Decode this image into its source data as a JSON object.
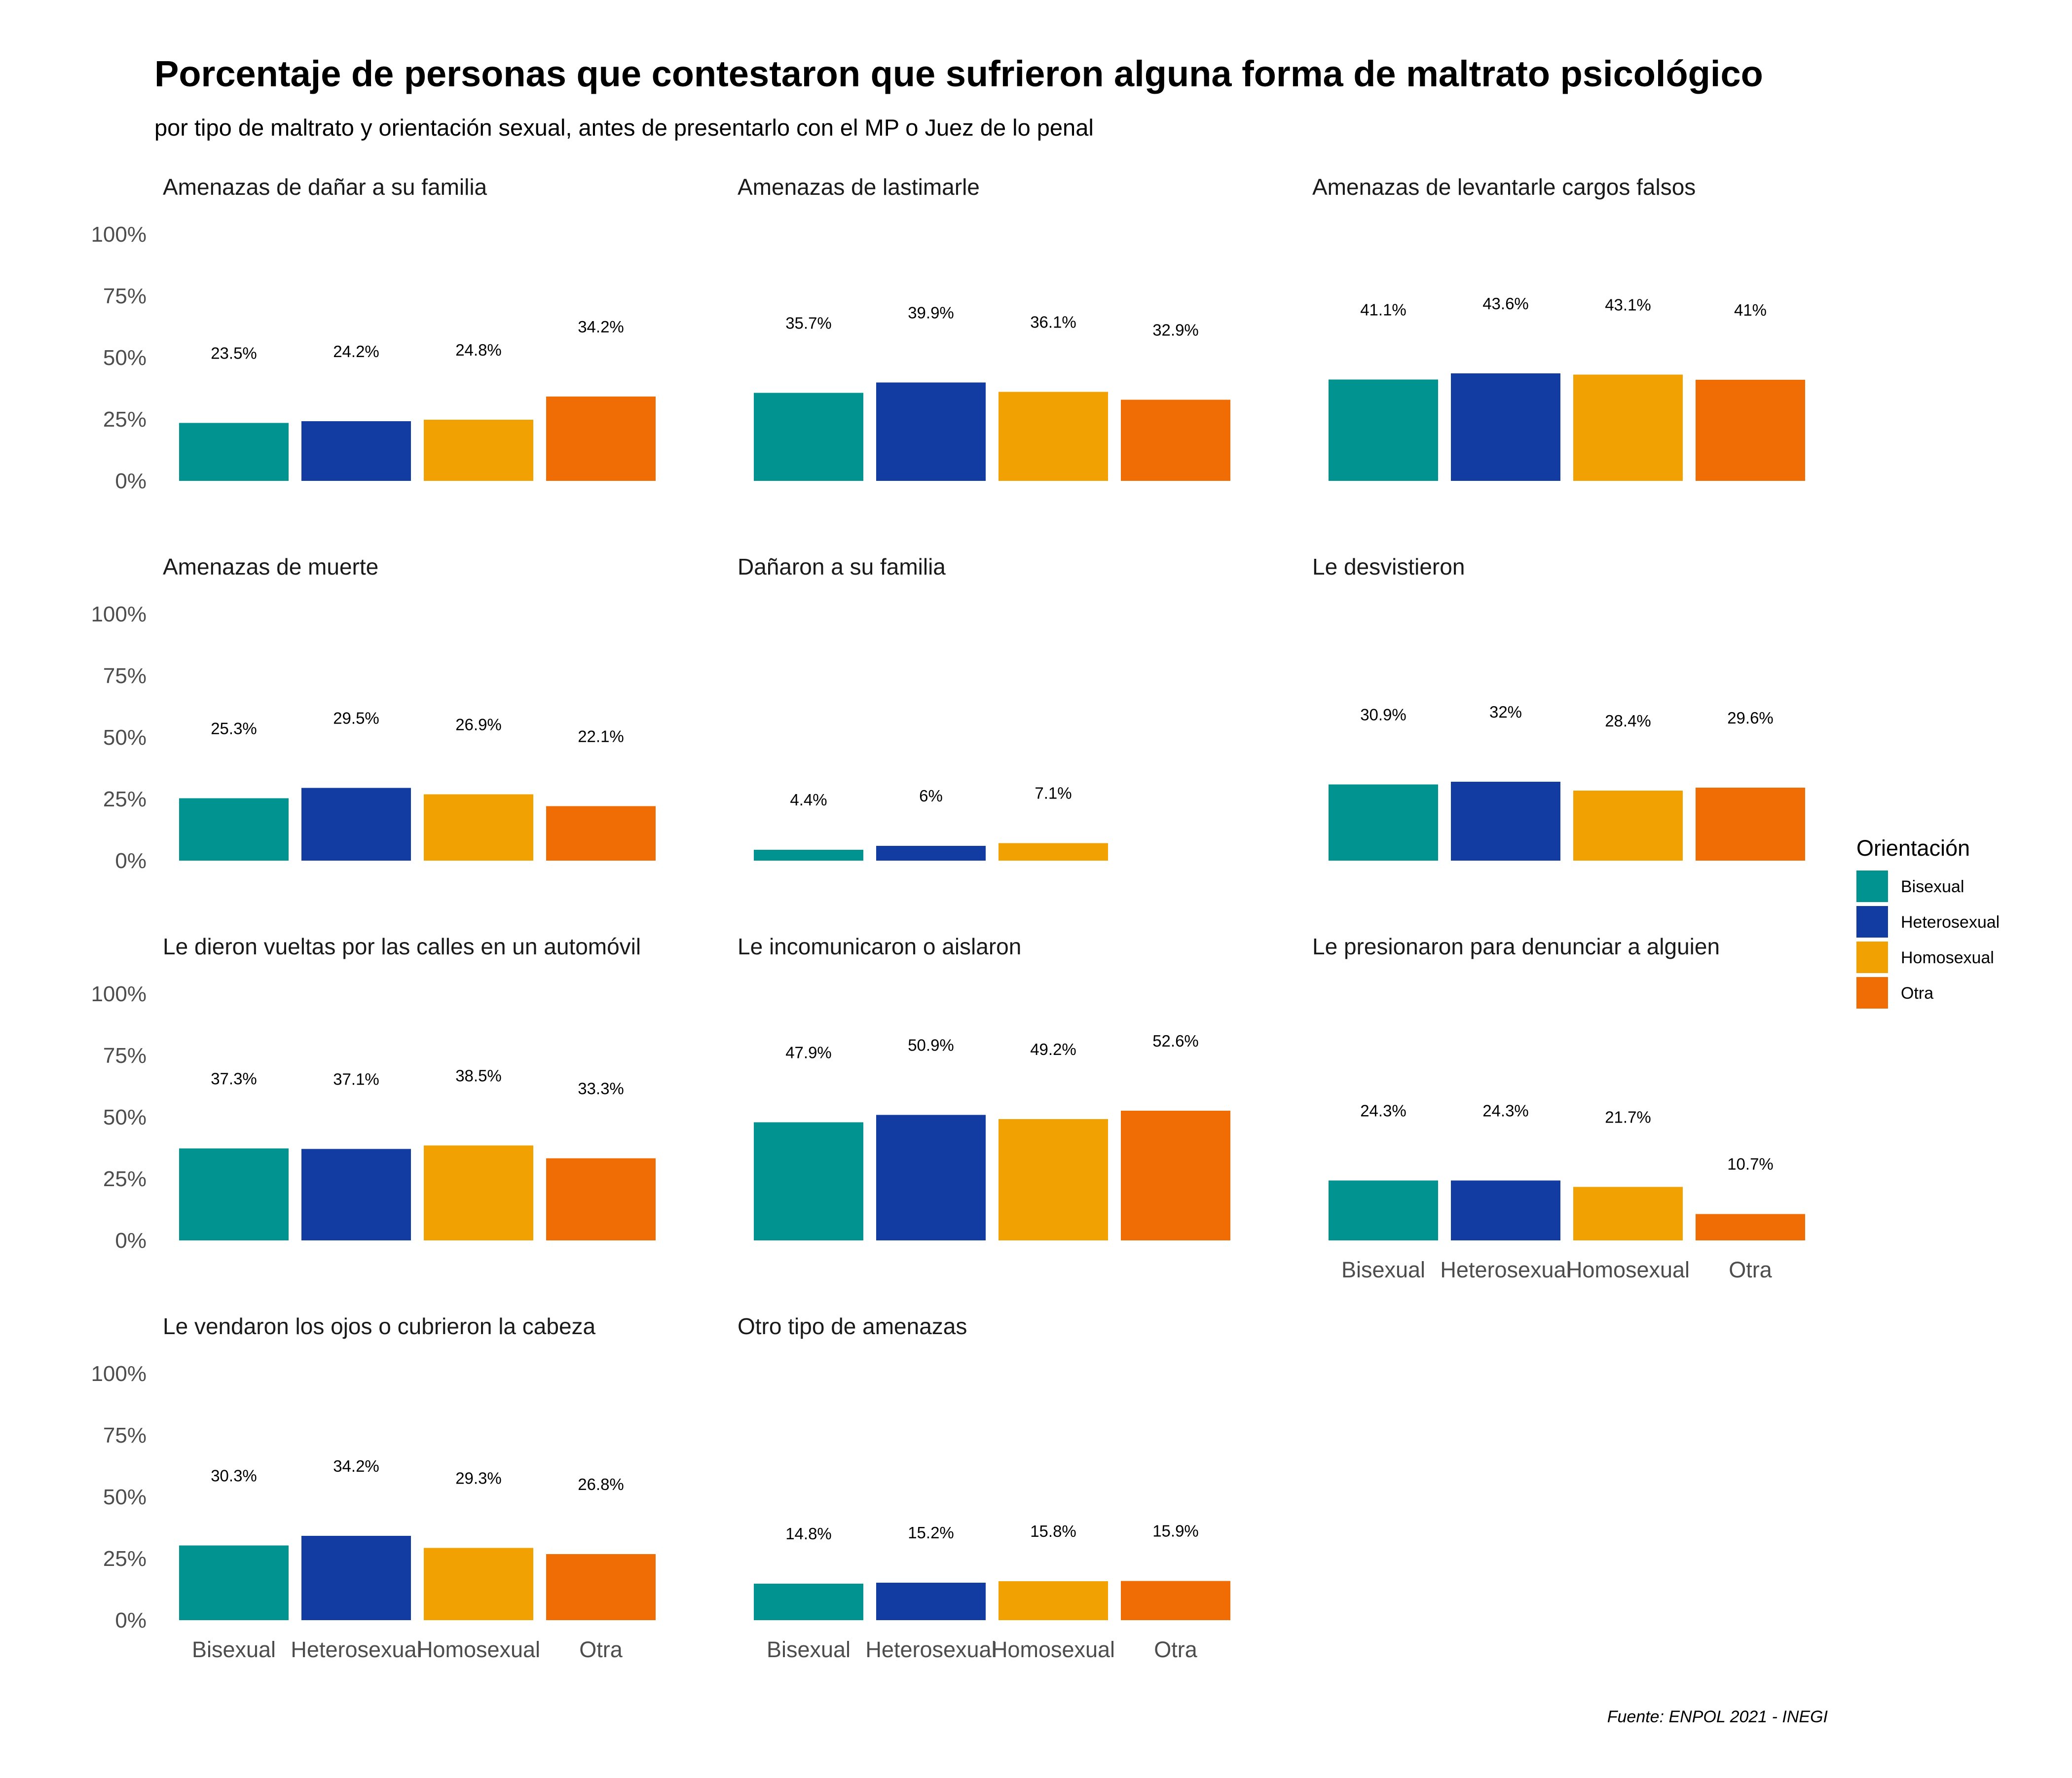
{
  "title": "Porcentaje de personas que contestaron que sufrieron alguna forma de maltrato psicológico",
  "subtitle": "por tipo de maltrato y orientación sexual, antes de presentarlo con el MP o Juez de lo penal",
  "caption": "Fuente: ENPOL 2021 - INEGI",
  "legend": {
    "title": "Orientación",
    "placement": "right",
    "items": [
      {
        "label": "Bisexual",
        "color": "#00938F"
      },
      {
        "label": "Heterosexual",
        "color": "#133CA3"
      },
      {
        "label": "Homosexual",
        "color": "#F2A102"
      },
      {
        "label": "Otra",
        "color": "#F06D06"
      }
    ]
  },
  "chart_data": {
    "type": "bar",
    "categories": [
      "Bisexual",
      "Heterosexual",
      "Homosexual",
      "Otra"
    ],
    "y_ticks": [
      "0%",
      "25%",
      "50%",
      "75%",
      "100%"
    ],
    "ylim": [
      0,
      100
    ],
    "grid": false,
    "panels": [
      {
        "title": "Amenazas de dañar a su familia",
        "values": [
          23.5,
          24.2,
          24.8,
          34.2
        ],
        "labels": [
          "23.5%",
          "24.2%",
          "24.8%",
          "34.2%"
        ]
      },
      {
        "title": "Amenazas de lastimarle",
        "values": [
          35.7,
          39.9,
          36.1,
          32.9
        ],
        "labels": [
          "35.7%",
          "39.9%",
          "36.1%",
          "32.9%"
        ]
      },
      {
        "title": "Amenazas de levantarle cargos falsos",
        "values": [
          41.1,
          43.6,
          43.1,
          41
        ],
        "labels": [
          "41.1%",
          "43.6%",
          "43.1%",
          "41%"
        ]
      },
      {
        "title": "Amenazas de muerte",
        "values": [
          25.3,
          29.5,
          26.9,
          22.1
        ],
        "labels": [
          "25.3%",
          "29.5%",
          "26.9%",
          "22.1%"
        ]
      },
      {
        "title": "Dañaron a su familia",
        "values": [
          4.4,
          6,
          7.1,
          null
        ],
        "labels": [
          "4.4%",
          "6%",
          "7.1%",
          null
        ]
      },
      {
        "title": "Le desvistieron",
        "values": [
          30.9,
          32,
          28.4,
          29.6
        ],
        "labels": [
          "30.9%",
          "32%",
          "28.4%",
          "29.6%"
        ]
      },
      {
        "title": "Le dieron vueltas por las calles en un automóvil",
        "values": [
          37.3,
          37.1,
          38.5,
          33.3
        ],
        "labels": [
          "37.3%",
          "37.1%",
          "38.5%",
          "33.3%"
        ]
      },
      {
        "title": "Le incomunicaron o aislaron",
        "values": [
          47.9,
          50.9,
          49.2,
          52.6
        ],
        "labels": [
          "47.9%",
          "50.9%",
          "49.2%",
          "52.6%"
        ]
      },
      {
        "title": "Le presionaron para denunciar a alguien",
        "values": [
          24.3,
          24.3,
          21.7,
          10.7
        ],
        "labels": [
          "24.3%",
          "24.3%",
          "21.7%",
          "10.7%"
        ]
      },
      {
        "title": "Le vendaron los ojos o cubrieron la cabeza",
        "values": [
          30.3,
          34.2,
          29.3,
          26.8
        ],
        "labels": [
          "30.3%",
          "34.2%",
          "29.3%",
          "26.8%"
        ]
      },
      {
        "title": "Otro tipo de amenazas",
        "values": [
          14.8,
          15.2,
          15.8,
          15.9
        ],
        "labels": [
          "14.8%",
          "15.2%",
          "15.8%",
          "15.9%"
        ]
      }
    ]
  }
}
